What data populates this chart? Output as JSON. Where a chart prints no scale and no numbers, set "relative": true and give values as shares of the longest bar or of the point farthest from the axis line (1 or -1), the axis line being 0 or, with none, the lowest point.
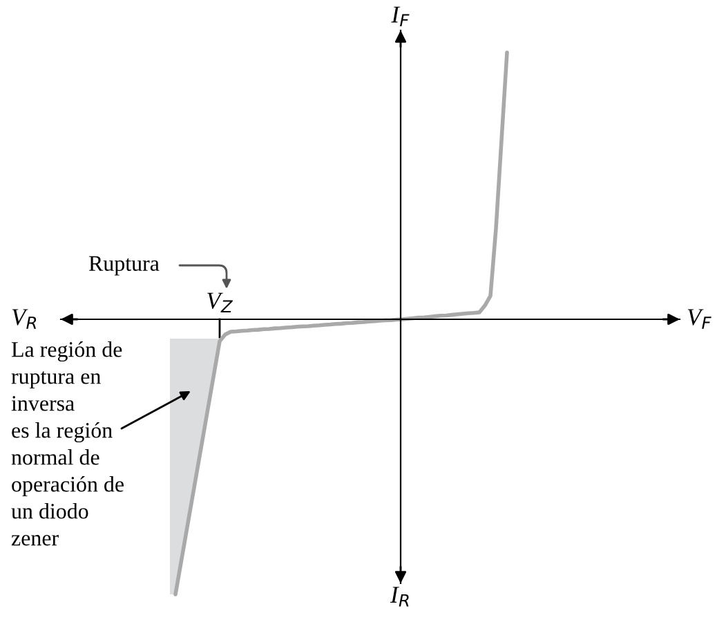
{
  "chart_data": {
    "type": "line",
    "relative": true,
    "categories": [
      null,
      null,
      null,
      null,
      null,
      null,
      null,
      null,
      null,
      null,
      null,
      null,
      null,
      null,
      null,
      null,
      null,
      null,
      null,
      null,
      null,
      null,
      null,
      null,
      null,
      null,
      null,
      null,
      null,
      null,
      null,
      null,
      null,
      null,
      null,
      null,
      null,
      null,
      null,
      null,
      null,
      null,
      null,
      null,
      null,
      null,
      null,
      null,
      null,
      null,
      null,
      null,
      null,
      null,
      null,
      null,
      null,
      null,
      null,
      null,
      null
    ],
    "series": [
      {
        "color": "#a9a9a9",
        "values": [
          -1.0,
          -0.885,
          -0.77,
          -0.655,
          -0.54,
          -0.425,
          -0.31,
          -0.195,
          -0.08,
          -0.055,
          -0.045,
          -0.044,
          -0.042,
          -0.041,
          -0.039,
          -0.038,
          -0.036,
          -0.035,
          -0.033,
          -0.032,
          -0.03,
          -0.029,
          -0.027,
          -0.026,
          -0.025,
          -0.023,
          -0.022,
          -0.02,
          -0.019,
          -0.017,
          -0.016,
          -0.014,
          -0.013,
          -0.011,
          -0.01,
          -0.008,
          -0.007,
          -0.005,
          -0.004,
          -0.003,
          -0.001,
          0.0,
          0.002,
          0.004,
          0.006,
          0.007,
          0.009,
          0.011,
          0.013,
          0.014,
          0.016,
          0.018,
          0.02,
          0.022,
          0.023,
          0.025,
          0.05,
          0.085,
          0.33,
          0.65,
          0.97
        ]
      }
    ],
    "annotations": [
      "V$_{R}$",
      "I$_{R}$",
      "V$_{Z}$",
      "Ruptura",
      "La región de\nruptura en\ninversa\nes la región\nnormal de\noperación de\nun diodo\nzener",
      "V$_{F}$",
      "I$_{F}$"
    ]
  }
}
